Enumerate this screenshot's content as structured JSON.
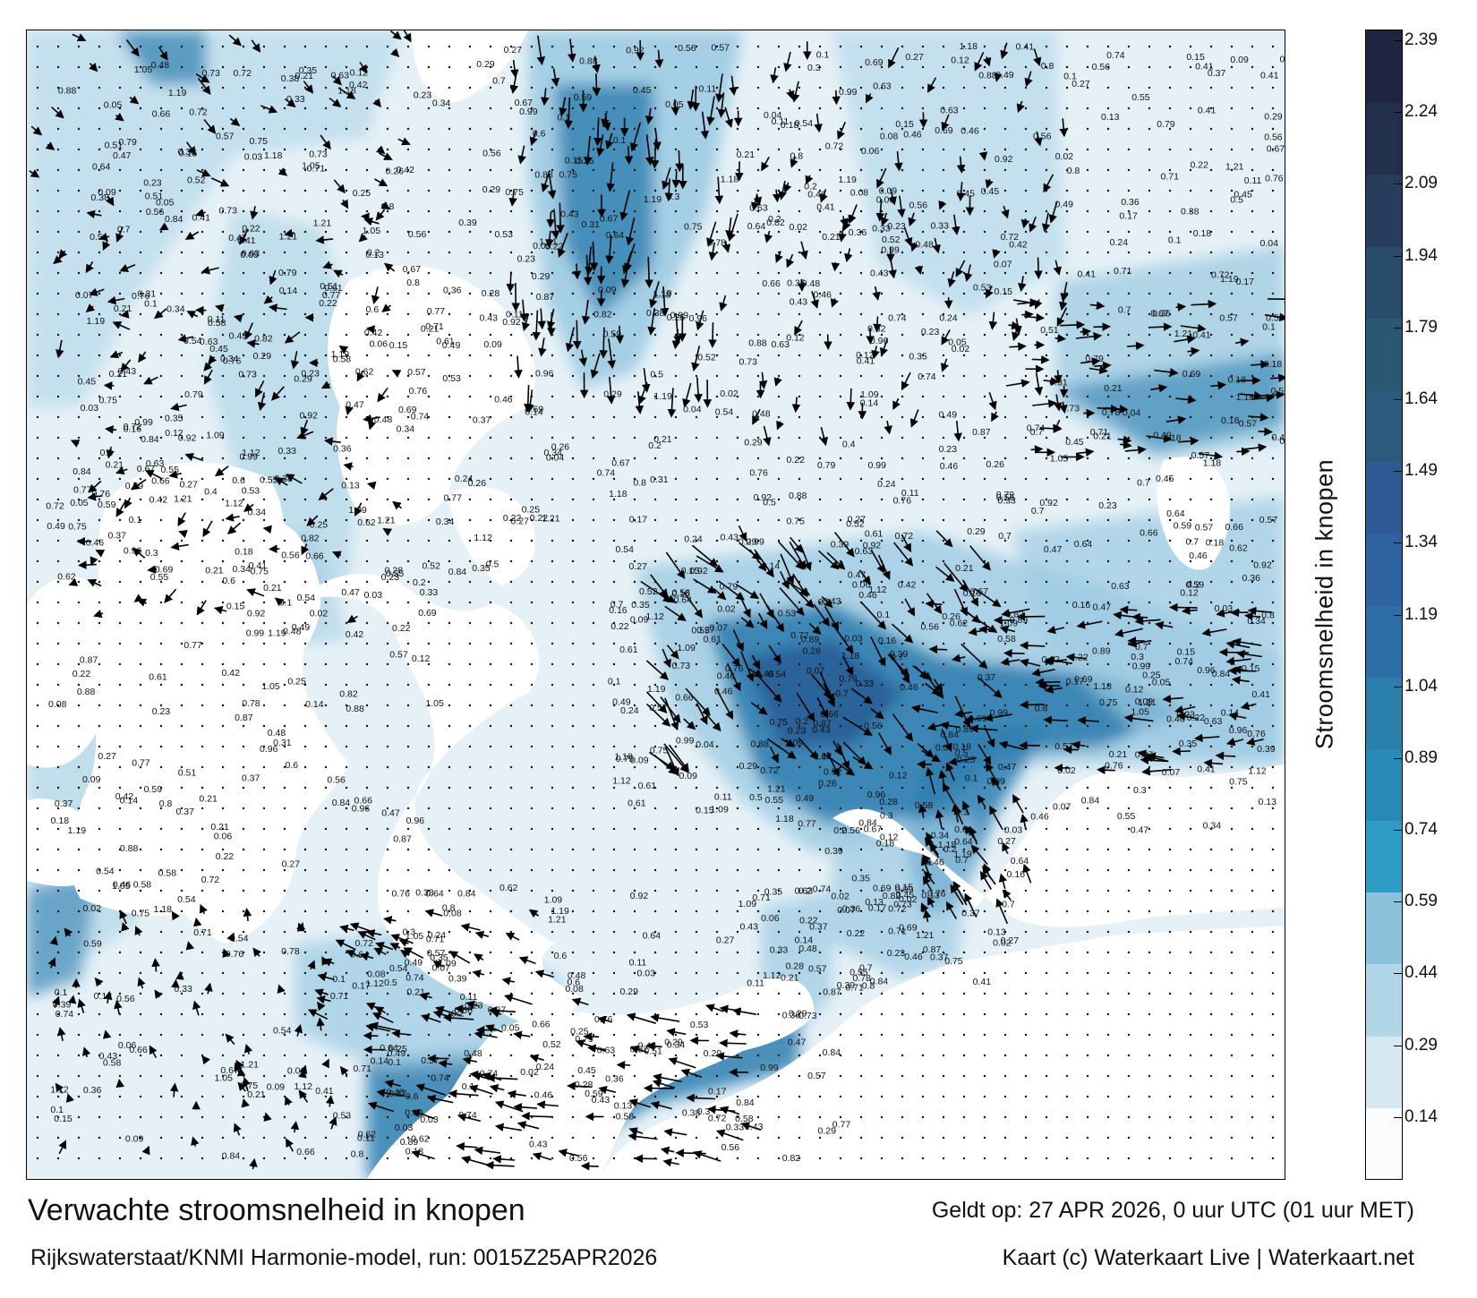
{
  "map": {
    "title": "Verwachte stroomsnelheid in knopen",
    "model_run": "Rijkswaterstaat/KNMI Harmonie-model, run: 0015Z25APR2026",
    "valid_time": "Geldt op: 27 APR 2026, 0 uur UTC (01 uur MET)",
    "credit": "Kaart (c) Waterkaart Live | Waterkaart.net",
    "colorbar_label": "Stroomsnelheid in knopen",
    "colorbar_ticks": [
      "0.14",
      "0.29",
      "0.44",
      "0.59",
      "0.74",
      "0.89",
      "1.04",
      "1.19",
      "1.34",
      "1.49",
      "1.64",
      "1.79",
      "1.94",
      "2.09",
      "2.24",
      "2.39"
    ],
    "colorbar_colors": [
      "#fafcfd",
      "#d6e9f2",
      "#b0d6e8",
      "#8bc3dd",
      "#2f9cc5",
      "#2a8ab6",
      "#2b7fad",
      "#2d6ea7",
      "#2f62a1",
      "#2f5994",
      "#2c5a7c",
      "#2a5872",
      "#294c6c",
      "#263d5c",
      "#22304c",
      "#1f2541"
    ],
    "colors": {
      "land": "#ffffff",
      "sea_light": "#e6f1f7",
      "sea_mid": "#9ccbe2",
      "sea_dark": "#2f7fb0",
      "sea_darkest": "#2a5e98",
      "arrow": "#000000"
    },
    "speed_labels": [
      "0.14",
      "0.12",
      "0.09",
      "0.13",
      "0.11",
      "0.05",
      "0.06",
      "0.07",
      "0.08",
      "0.17",
      "0.1",
      "0.04",
      "0.03",
      "0.02",
      "0.16",
      "0.15",
      "0.18",
      "0.2",
      "0.21",
      "0.22",
      "0.23",
      "0.24",
      "0.25",
      "0.26",
      "0.27",
      "0.28",
      "0.29",
      "0.3",
      "0.31",
      "0.33",
      "0.34",
      "0.35",
      "0.36",
      "0.37",
      "0.38",
      "0.39",
      "0.4",
      "0.41",
      "0.42",
      "0.43",
      "0.45",
      "0.46",
      "0.47",
      "0.48",
      "0.49",
      "0.5",
      "0.51",
      "0.52",
      "0.53",
      "0.54",
      "0.55",
      "0.56",
      "0.57",
      "0.58",
      "0.59",
      "0.6",
      "0.61",
      "0.62",
      "0.63",
      "0.64",
      "0.66",
      "0.67",
      "0.69",
      "0.7",
      "0.71",
      "0.72",
      "0.73",
      "0.74",
      "0.75",
      "0.76",
      "0.77",
      "0.78",
      "0.79",
      "0.8",
      "0.82",
      "0.84",
      "0.87",
      "0.88",
      "0.89",
      "0.92",
      "0.96",
      "0.99",
      "1.05",
      "1.09",
      "1.12",
      "1.18",
      "1.19",
      "1.21"
    ]
  }
}
